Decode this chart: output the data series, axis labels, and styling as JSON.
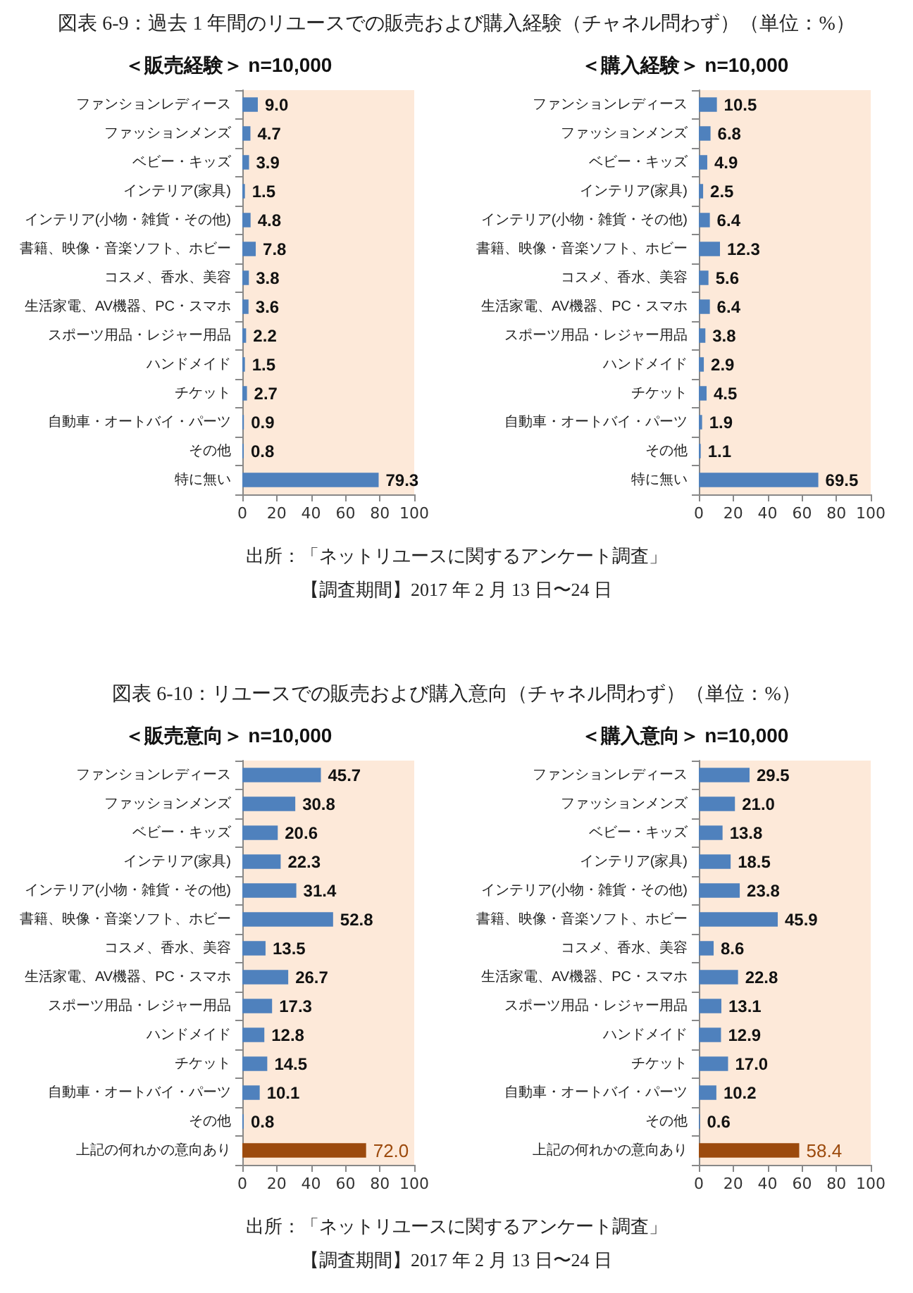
{
  "chart_data": [
    {
      "type": "bar",
      "orientation": "horizontal",
      "title": "図表 6-9：過去 1 年間のリユースでの販売および購入経験（チャネル問わず）（単位：%）",
      "subtitle": "＜販売経験＞ n=10,000",
      "categories": [
        "ファンションレディース",
        "ファッションメンズ",
        "ベビー・キッズ",
        "インテリア(家具)",
        "インテリア(小物・雑貨・その他)",
        "書籍、映像・音楽ソフト、ホビー",
        "コスメ、香水、美容",
        "生活家電、AV機器、PC・スマホ",
        "スポーツ用品・レジャー用品",
        "ハンドメイド",
        "チケット",
        "自動車・オートバイ・パーツ",
        "その他",
        "特に無い"
      ],
      "values": [
        9.0,
        4.7,
        3.9,
        1.5,
        4.8,
        7.8,
        3.8,
        3.6,
        2.2,
        1.5,
        2.7,
        0.9,
        0.8,
        79.3
      ],
      "value_labels": [
        "9.0",
        "4.7",
        "3.9",
        "1.5",
        "4.8",
        "7.8",
        "3.8",
        "3.6",
        "2.2",
        "1.5",
        "2.7",
        "0.9",
        "0.8",
        "79.3"
      ],
      "color": "#4f81bd",
      "xlim": [
        0,
        100
      ],
      "xticks": [
        0,
        20,
        40,
        60,
        80,
        100
      ],
      "annotations": [
        "出所：「ネットリユースに関するアンケート調査」",
        "【調査期間】2017 年 2 月 13 日〜24 日"
      ]
    },
    {
      "type": "bar",
      "orientation": "horizontal",
      "subtitle": "＜購入経験＞ n=10,000",
      "categories": [
        "ファンションレディース",
        "ファッションメンズ",
        "ベビー・キッズ",
        "インテリア(家具)",
        "インテリア(小物・雑貨・その他)",
        "書籍、映像・音楽ソフト、ホビー",
        "コスメ、香水、美容",
        "生活家電、AV機器、PC・スマホ",
        "スポーツ用品・レジャー用品",
        "ハンドメイド",
        "チケット",
        "自動車・オートバイ・パーツ",
        "その他",
        "特に無い"
      ],
      "values": [
        10.5,
        6.8,
        4.9,
        2.5,
        6.4,
        12.3,
        5.6,
        6.4,
        3.8,
        2.9,
        4.5,
        1.9,
        1.1,
        69.5
      ],
      "value_labels": [
        "10.5",
        "6.8",
        "4.9",
        "2.5",
        "6.4",
        "12.3",
        "5.6",
        "6.4",
        "3.8",
        "2.9",
        "4.5",
        "1.9",
        "1.1",
        "69.5"
      ],
      "color": "#4f81bd",
      "xlim": [
        0,
        100
      ],
      "xticks": [
        0,
        20,
        40,
        60,
        80,
        100
      ]
    },
    {
      "type": "bar",
      "orientation": "horizontal",
      "title": "図表 6-10：リユースでの販売および購入意向（チャネル問わず）（単位：%）",
      "subtitle": "＜販売意向＞ n=10,000",
      "categories": [
        "ファンションレディース",
        "ファッションメンズ",
        "ベビー・キッズ",
        "インテリア(家具)",
        "インテリア(小物・雑貨・その他)",
        "書籍、映像・音楽ソフト、ホビー",
        "コスメ、香水、美容",
        "生活家電、AV機器、PC・スマホ",
        "スポーツ用品・レジャー用品",
        "ハンドメイド",
        "チケット",
        "自動車・オートバイ・パーツ",
        "その他",
        "上記の何れかの意向あり"
      ],
      "values": [
        45.7,
        30.8,
        20.6,
        22.3,
        31.4,
        52.8,
        13.5,
        26.7,
        17.3,
        12.8,
        14.5,
        10.1,
        0.8,
        72.0
      ],
      "value_labels": [
        "45.7",
        "30.8",
        "20.6",
        "22.3",
        "31.4",
        "52.8",
        "13.5",
        "26.7",
        "17.3",
        "12.8",
        "14.5",
        "10.1",
        "0.8",
        "72.0"
      ],
      "color": "#4f81bd",
      "colors": [
        "#4f81bd",
        "#4f81bd",
        "#4f81bd",
        "#4f81bd",
        "#4f81bd",
        "#4f81bd",
        "#4f81bd",
        "#4f81bd",
        "#4f81bd",
        "#4f81bd",
        "#4f81bd",
        "#4f81bd",
        "#4f81bd",
        "#9c4a0d"
      ],
      "xlim": [
        0,
        100
      ],
      "xticks": [
        0,
        20,
        40,
        60,
        80,
        100
      ],
      "annotations": [
        "出所：「ネットリユースに関するアンケート調査」",
        "【調査期間】2017 年 2 月 13 日〜24 日"
      ]
    },
    {
      "type": "bar",
      "orientation": "horizontal",
      "subtitle": "＜購入意向＞ n=10,000",
      "categories": [
        "ファンションレディース",
        "ファッションメンズ",
        "ベビー・キッズ",
        "インテリア(家具)",
        "インテリア(小物・雑貨・その他)",
        "書籍、映像・音楽ソフト、ホビー",
        "コスメ、香水、美容",
        "生活家電、AV機器、PC・スマホ",
        "スポーツ用品・レジャー用品",
        "ハンドメイド",
        "チケット",
        "自動車・オートバイ・パーツ",
        "その他",
        "上記の何れかの意向あり"
      ],
      "values": [
        29.5,
        21.0,
        13.8,
        18.5,
        23.8,
        45.9,
        8.6,
        22.8,
        13.1,
        12.9,
        17.0,
        10.2,
        0.6,
        58.4
      ],
      "value_labels": [
        "29.5",
        "21.0",
        "13.8",
        "18.5",
        "23.8",
        "45.9",
        "8.6",
        "22.8",
        "13.1",
        "12.9",
        "17.0",
        "10.2",
        "0.6",
        "58.4"
      ],
      "color": "#4f81bd",
      "colors": [
        "#4f81bd",
        "#4f81bd",
        "#4f81bd",
        "#4f81bd",
        "#4f81bd",
        "#4f81bd",
        "#4f81bd",
        "#4f81bd",
        "#4f81bd",
        "#4f81bd",
        "#4f81bd",
        "#4f81bd",
        "#4f81bd",
        "#9c4a0d"
      ],
      "xlim": [
        0,
        100
      ],
      "xticks": [
        0,
        20,
        40,
        60,
        80,
        100
      ]
    }
  ]
}
